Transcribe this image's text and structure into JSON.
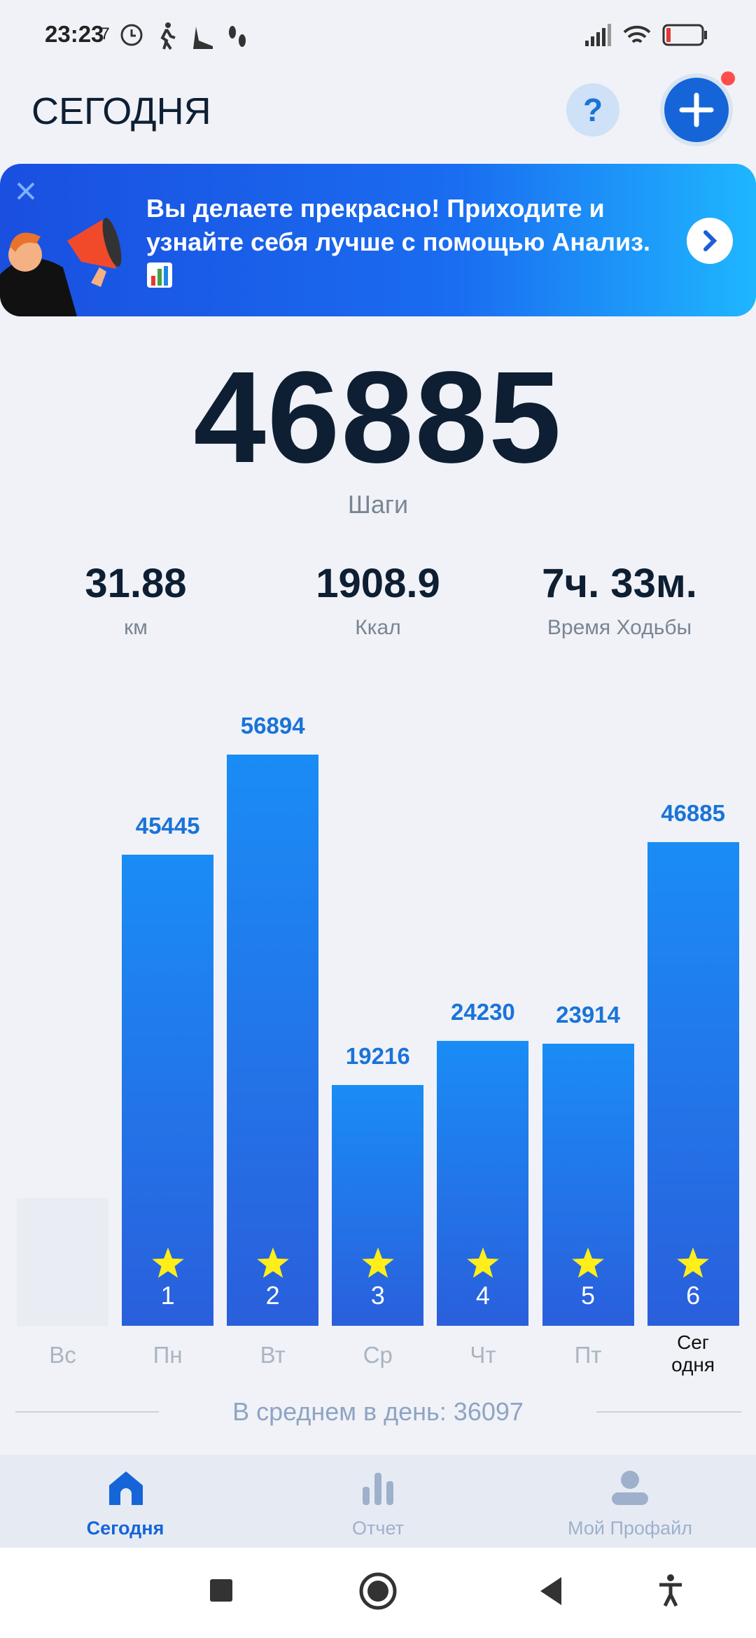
{
  "status_bar": {
    "time": "23:23",
    "battery": "7"
  },
  "header": {
    "title": "СЕГОДНЯ",
    "help": "?"
  },
  "banner": {
    "text": "Вы делаете прекрасно! Приходите и узнайте себя лучше с помощью Анализ."
  },
  "summary": {
    "steps": 46885,
    "steps_label": "Шаги",
    "stats": [
      {
        "value": "31.88",
        "label": "км"
      },
      {
        "value": "1908.9",
        "label": "Ккал"
      },
      {
        "value": "7ч. 33м.",
        "label": "Время Ходьбы"
      }
    ]
  },
  "chart_data": {
    "type": "bar",
    "categories": [
      "Вс",
      "Пн",
      "Вт",
      "Ср",
      "Чт",
      "Пт",
      "Сег\nодня"
    ],
    "values": [
      null,
      45445,
      56894,
      19216,
      24230,
      23914,
      46885
    ],
    "badges": [
      null,
      1,
      2,
      3,
      4,
      5,
      6
    ],
    "color": "#1a8cf5",
    "label_color": "#1a73d9"
  },
  "average": "В среднем в день: 36097",
  "nav": {
    "items": [
      "Сегодня",
      "Отчет",
      "Мой Профайл"
    ]
  }
}
